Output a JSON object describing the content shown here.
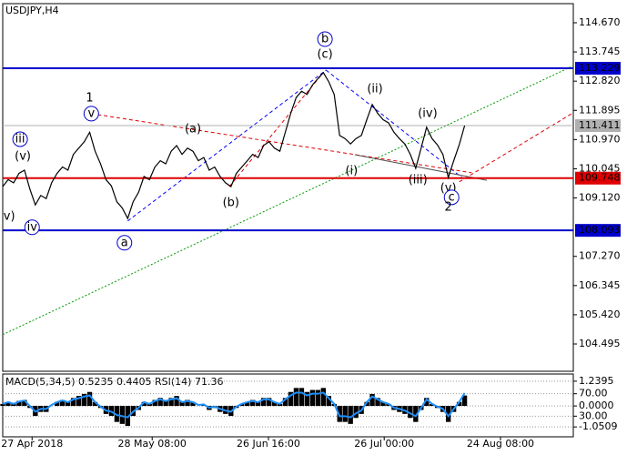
{
  "chart_data": [
    {
      "type": "line",
      "title": "USDJPY,H4",
      "xlim": [
        0,
        105
      ],
      "ylim": [
        103.63,
        115.275
      ],
      "yticks": [
        {
          "value": 114.67,
          "label": "114.670"
        },
        {
          "value": 113.745,
          "label": "113.745"
        },
        {
          "value": 112.82,
          "label": "112.820"
        },
        {
          "value": 111.895,
          "label": "111.895"
        },
        {
          "value": 110.97,
          "label": "110.970"
        },
        {
          "value": 110.045,
          "label": "110.045"
        },
        {
          "value": 109.12,
          "label": "109.120"
        },
        {
          "value": 107.27,
          "label": "107.270"
        },
        {
          "value": 106.345,
          "label": "106.345"
        },
        {
          "value": 105.42,
          "label": "105.420"
        },
        {
          "value": 104.495,
          "label": "104.495"
        }
      ],
      "series": [
        {
          "color": "#000000",
          "values": [
            109.48,
            109.7,
            109.6,
            109.9,
            110.0,
            109.4,
            108.9,
            109.2,
            109.1,
            109.6,
            109.9,
            110.1,
            110.0,
            110.5,
            110.7,
            110.9,
            111.2,
            110.6,
            110.2,
            109.7,
            109.5,
            109.0,
            108.8,
            108.47,
            109.0,
            109.3,
            109.8,
            109.7,
            110.1,
            110.3,
            110.2,
            110.6,
            110.78,
            110.5,
            110.7,
            110.6,
            110.3,
            110.4,
            110.0,
            110.1,
            109.8,
            109.6,
            109.48,
            109.9,
            110.1,
            110.3,
            110.5,
            110.4,
            110.78,
            110.9,
            110.7,
            110.6,
            111.2,
            111.8,
            112.3,
            112.5,
            112.4,
            112.7,
            112.9,
            113.09,
            112.8,
            112.4,
            111.1,
            111.0,
            110.83,
            111.0,
            111.1,
            111.6,
            112.08,
            111.8,
            111.6,
            111.5,
            111.2,
            111.0,
            110.83,
            110.5,
            110.06,
            110.7,
            111.36,
            111.0,
            110.8,
            110.5,
            109.77,
            110.3,
            110.8,
            111.41
          ]
        }
      ],
      "levels": [
        {
          "value": 113.229,
          "color": "#0000cc"
        },
        {
          "value": 111.411,
          "color": "#b0b0b0"
        },
        {
          "value": 109.748,
          "color": "#e00000"
        },
        {
          "value": 108.093,
          "color": "#0000cc"
        }
      ],
      "lines": [
        {
          "x": [
            0,
            105
          ],
          "y": [
            104.79,
            113.31
          ],
          "color": "#009900",
          "style": "dotted"
        },
        {
          "x": [
            23,
            59.5
          ],
          "y": [
            108.39,
            113.17
          ],
          "color": "#0000ff",
          "style": "dashed"
        },
        {
          "x": [
            59.5,
            84.5
          ],
          "y": [
            113.17,
            109.77
          ],
          "color": "#0000ff",
          "style": "dashed"
        },
        {
          "x": [
            16.3,
            86.3
          ],
          "y": [
            111.79,
            109.92
          ],
          "color": "#e00000",
          "style": "dashed"
        },
        {
          "x": [
            41.7,
            59
          ],
          "y": [
            109.48,
            113.09
          ],
          "color": "#e00000",
          "style": "dashed"
        },
        {
          "x": [
            84,
            105
          ],
          "y": [
            109.63,
            111.82
          ],
          "color": "#e00000",
          "style": "dashed"
        },
        {
          "x": [
            64.8,
            89.1
          ],
          "y": [
            110.49,
            109.68
          ],
          "color": "#555555",
          "style": "solid"
        }
      ],
      "annotations": [
        {
          "text": "1",
          "x": 16,
          "y": 112.28,
          "color": "#e00000"
        },
        {
          "text": "v",
          "x": 16.3,
          "y": 111.79,
          "color": "#0000cc",
          "circle": true
        },
        {
          "text": "iii",
          "x": 3.2,
          "y": 110.98,
          "color": "#0000cc",
          "circle": true
        },
        {
          "text": "(v)",
          "x": 3.7,
          "y": 110.43,
          "color": "#e00000"
        },
        {
          "text": "v)",
          "x": 1.2,
          "y": 108.53,
          "color": "#e00000"
        },
        {
          "text": "iv",
          "x": 5.4,
          "y": 108.19,
          "color": "#0000cc",
          "circle": true
        },
        {
          "text": "a",
          "x": 22.4,
          "y": 107.7,
          "color": "#0000cc",
          "circle": true
        },
        {
          "text": "(a)",
          "x": 35,
          "y": 111.3,
          "color": "#e00000"
        },
        {
          "text": "(b)",
          "x": 42,
          "y": 108.96,
          "color": "#e00000"
        },
        {
          "text": "b",
          "x": 59.3,
          "y": 114.15,
          "color": "#0000cc",
          "circle": true
        },
        {
          "text": "(c)",
          "x": 59.3,
          "y": 113.66,
          "color": "#e00000"
        },
        {
          "text": "(ii)",
          "x": 68.5,
          "y": 112.57,
          "color": "#e00000"
        },
        {
          "text": "(iv)",
          "x": 78.2,
          "y": 111.79,
          "color": "#e00000"
        },
        {
          "text": "(i)",
          "x": 64.2,
          "y": 109.97,
          "color": "#e00000"
        },
        {
          "text": "(iii)",
          "x": 76.4,
          "y": 109.68,
          "color": "#e00000"
        },
        {
          "text": "(v)",
          "x": 82,
          "y": 109.43,
          "color": "#e00000"
        },
        {
          "text": "c",
          "x": 82.6,
          "y": 109.14,
          "color": "#0000cc",
          "circle": true
        },
        {
          "text": "2",
          "x": 82,
          "y": 108.82,
          "color": "#e00000"
        }
      ]
    },
    {
      "type": "bar",
      "title": "MACD(5,34,5) 0.5235 0.4405 RSI(14) 71.36",
      "xlim": [
        0,
        105
      ],
      "ylim": [
        -1.545,
        1.599
      ],
      "y2lim": [
        -6.8,
        105.2
      ],
      "yticks": [
        1.2395,
        {
          "value": 0,
          "label": "0.0000"
        },
        -1.0509
      ],
      "y2ticks": [
        {
          "value": 70,
          "label": "70.00"
        },
        {
          "value": 30,
          "label": "30.00"
        }
      ],
      "xticks": [
        {
          "value": 5.4,
          "label": "27 Apr 2018"
        },
        {
          "value": 27.5,
          "label": "28 May 08:00"
        },
        {
          "value": 48.9,
          "label": "26 Jun 16:00"
        },
        {
          "value": 70.2,
          "label": "26 Jul 00:00"
        },
        {
          "value": 91.6,
          "label": "24 Aug 08:00"
        }
      ],
      "series": [
        {
          "type": "bar",
          "color": "#000000",
          "values": [
            0.1,
            0.2,
            0.1,
            0.25,
            0.3,
            -0.1,
            -0.5,
            -0.3,
            -0.3,
            0.0,
            0.2,
            0.3,
            0.2,
            0.4,
            0.5,
            0.6,
            0.7,
            0.2,
            -0.1,
            -0.4,
            -0.5,
            -0.8,
            -0.9,
            -1.0,
            -0.5,
            -0.2,
            0.2,
            0.1,
            0.3,
            0.4,
            0.3,
            0.4,
            0.5,
            0.2,
            0.3,
            0.2,
            0.0,
            0.05,
            -0.2,
            -0.1,
            -0.3,
            -0.4,
            -0.5,
            -0.1,
            0.1,
            0.2,
            0.3,
            0.2,
            0.4,
            0.4,
            0.2,
            0.1,
            0.4,
            0.7,
            0.9,
            0.9,
            0.7,
            0.8,
            0.8,
            0.9,
            0.5,
            0.1,
            -0.8,
            -0.8,
            -0.9,
            -0.6,
            -0.4,
            0.2,
            0.6,
            0.4,
            0.2,
            0.1,
            -0.2,
            -0.3,
            -0.4,
            -0.6,
            -0.8,
            -0.2,
            0.4,
            0.1,
            -0.1,
            -0.3,
            -0.8,
            -0.3,
            0.2,
            0.5235
          ]
        },
        {
          "type": "line",
          "axis": "y2",
          "color": "#1e90ff",
          "values": [
            52,
            55,
            52,
            56,
            58,
            48,
            38,
            43,
            43,
            50,
            55,
            58,
            55,
            60,
            62,
            65,
            67,
            55,
            47,
            40,
            38,
            32,
            30,
            28,
            38,
            45,
            55,
            52,
            57,
            60,
            57,
            60,
            62,
            55,
            57,
            55,
            50,
            51,
            45,
            47,
            43,
            40,
            38,
            47,
            52,
            55,
            57,
            55,
            60,
            60,
            55,
            52,
            60,
            67,
            72,
            72,
            67,
            70,
            70,
            72,
            62,
            52,
            30,
            30,
            28,
            35,
            40,
            55,
            65,
            60,
            55,
            52,
            45,
            43,
            40,
            35,
            30,
            45,
            60,
            52,
            47,
            43,
            30,
            43,
            55,
            71.36
          ]
        }
      ]
    }
  ]
}
